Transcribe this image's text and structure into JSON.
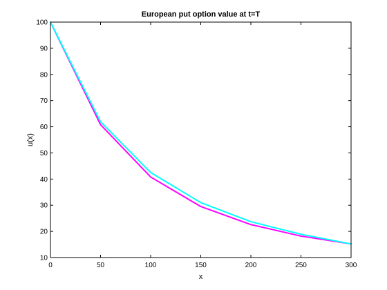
{
  "chart_data": {
    "type": "line",
    "title": "European put option value at t=T",
    "xlabel": "x",
    "ylabel": "u(x)",
    "xlim": [
      0,
      300
    ],
    "ylim": [
      10,
      100
    ],
    "xticks": [
      0,
      50,
      100,
      150,
      200,
      250,
      300
    ],
    "yticks": [
      10,
      20,
      30,
      40,
      50,
      60,
      70,
      80,
      90,
      100
    ],
    "grid": false,
    "x": [
      0,
      50,
      100,
      150,
      200,
      250,
      300
    ],
    "series": [
      {
        "color": "#ff00ff",
        "values": [
          100,
          60.8,
          40.8,
          29.5,
          22.6,
          18.2,
          15.2
        ]
      },
      {
        "color": "#00ffff",
        "values": [
          100,
          61.9,
          42.5,
          31.0,
          23.7,
          18.9,
          15.2
        ]
      }
    ]
  }
}
